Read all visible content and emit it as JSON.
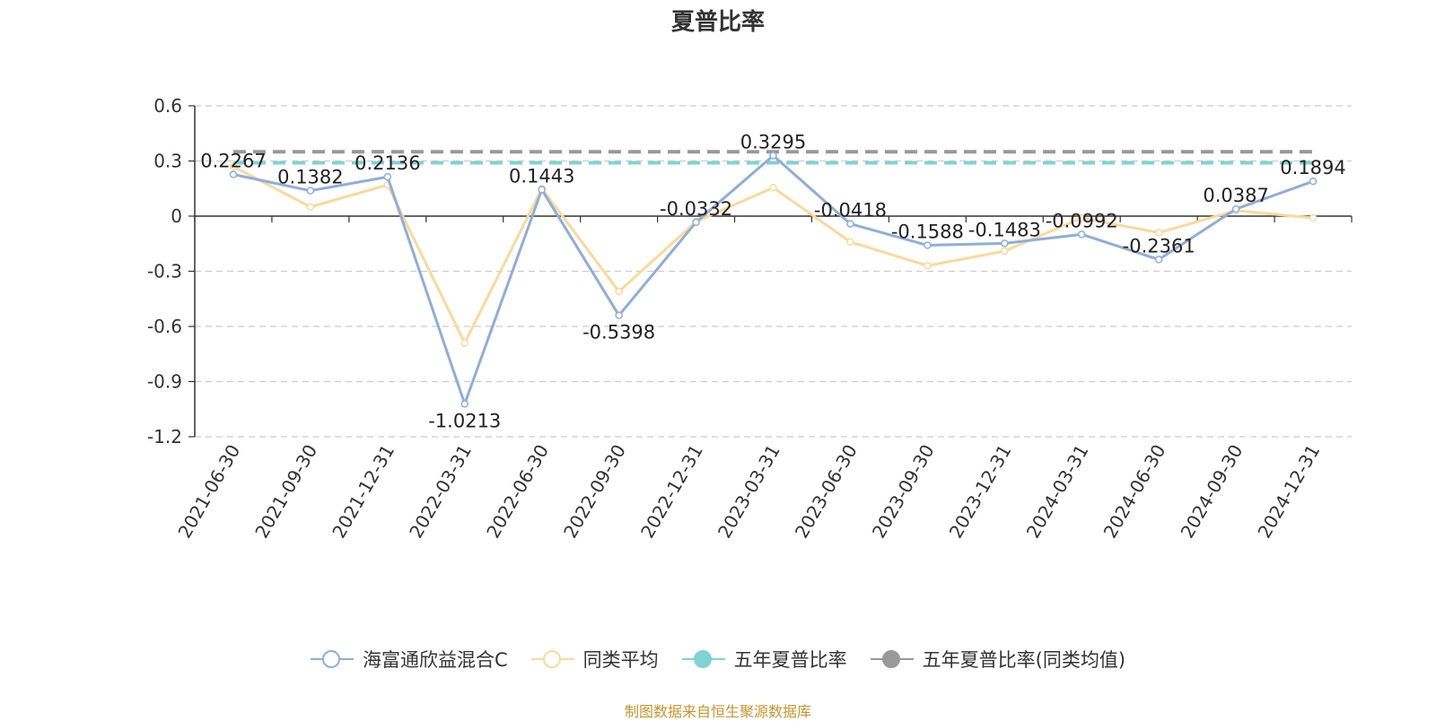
{
  "chart_data": {
    "type": "line",
    "title": "夏普比率",
    "categories": [
      "2021-06-30",
      "2021-09-30",
      "2021-12-31",
      "2022-03-31",
      "2022-06-30",
      "2022-09-30",
      "2022-12-31",
      "2023-03-31",
      "2023-06-30",
      "2023-09-30",
      "2023-12-31",
      "2024-03-31",
      "2024-06-30",
      "2024-09-30",
      "2024-12-31"
    ],
    "series": [
      {
        "name": "海富通欣益混合C",
        "color": "#8eaedb",
        "values": [
          0.2267,
          0.1382,
          0.2136,
          -1.0213,
          0.1443,
          -0.5398,
          -0.0332,
          0.3295,
          -0.0418,
          -0.1588,
          -0.1483,
          -0.0992,
          -0.2361,
          0.0387,
          0.1894
        ],
        "labels": [
          "0.2267",
          "0.1382",
          "0.2136",
          "-1.0213",
          "0.1443",
          "-0.5398",
          "-0.0332",
          "0.3295",
          "-0.0418",
          "-0.1588",
          "-0.1483",
          "-0.0992",
          "-0.2361",
          "0.0387",
          "0.1894"
        ]
      },
      {
        "name": "同类平均",
        "color": "#fbd99a",
        "values": [
          0.27,
          0.05,
          0.17,
          -0.69,
          0.15,
          -0.41,
          -0.03,
          0.155,
          -0.14,
          -0.27,
          -0.19,
          -0.01,
          -0.09,
          0.03,
          -0.01
        ]
      },
      {
        "name": "五年夏普比率",
        "color": "#7fd3d3",
        "style": "dashed",
        "value": 0.29
      },
      {
        "name": "五年夏普比率(同类均值)",
        "color": "#999999",
        "style": "dashed",
        "value": 0.35
      }
    ],
    "ylim": [
      -1.2,
      0.6
    ],
    "yticks": [
      "0.6",
      "0.3",
      "0",
      "-0.3",
      "-0.6",
      "-0.9",
      "-1.2"
    ],
    "grid": true,
    "legend": "bottom"
  },
  "source": "制图数据来自恒生聚源数据库"
}
